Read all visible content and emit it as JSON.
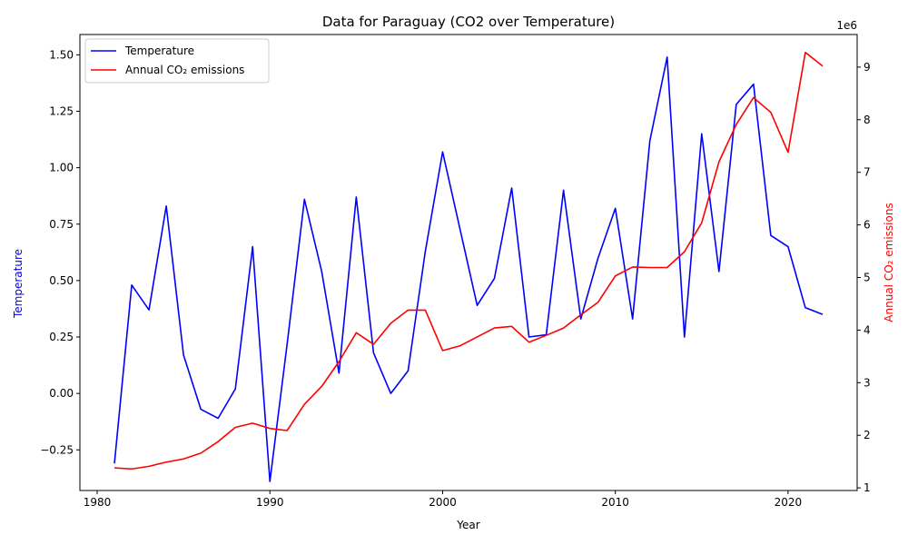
{
  "chart_data": {
    "type": "line",
    "title": "Data for Paraguay (CO2 over Temperature)",
    "xlabel": "Year",
    "ylabel_left": "Temperature",
    "ylabel_right": "Annual CO₂ emissions",
    "right_offset_label": "1e6",
    "xlim": [
      1979,
      2024
    ],
    "ylim_left": [
      -0.43,
      1.59
    ],
    "ylim_right": [
      0.95,
      9.62
    ],
    "x_ticks": [
      1980,
      1990,
      2000,
      2010,
      2020
    ],
    "y_left_ticks": [
      "-0.25",
      "0.00",
      "0.25",
      "0.50",
      "0.75",
      "1.00",
      "1.25",
      "1.50"
    ],
    "y_right_ticks": [
      "1",
      "2",
      "3",
      "4",
      "5",
      "6",
      "7",
      "8",
      "9"
    ],
    "legend_position": "top-left",
    "grid": false,
    "x": [
      1981,
      1982,
      1983,
      1984,
      1985,
      1986,
      1987,
      1988,
      1989,
      1990,
      1991,
      1992,
      1993,
      1994,
      1995,
      1996,
      1997,
      1998,
      1999,
      2000,
      2001,
      2002,
      2003,
      2004,
      2005,
      2006,
      2007,
      2008,
      2009,
      2010,
      2011,
      2012,
      2013,
      2014,
      2015,
      2016,
      2017,
      2018,
      2019,
      2020,
      2021,
      2022
    ],
    "series": [
      {
        "name": "Temperature",
        "axis": "left",
        "color": "#0000ff",
        "values": [
          -0.31,
          0.48,
          0.37,
          0.83,
          0.17,
          -0.07,
          -0.11,
          0.02,
          0.65,
          -0.39,
          0.22,
          0.86,
          0.54,
          0.09,
          0.87,
          0.18,
          0.0,
          0.1,
          0.63,
          1.07,
          0.73,
          0.39,
          0.51,
          0.91,
          0.25,
          0.26,
          0.9,
          0.33,
          0.6,
          0.82,
          0.33,
          1.12,
          1.49,
          0.25,
          1.15,
          0.54,
          1.28,
          1.37,
          0.7,
          0.65,
          0.38,
          0.35
        ]
      },
      {
        "name": "Annual CO₂ emissions",
        "axis": "right",
        "color": "#ff0000",
        "values": [
          1.38,
          1.36,
          1.41,
          1.49,
          1.55,
          1.66,
          1.88,
          2.15,
          2.23,
          2.13,
          2.09,
          2.59,
          2.93,
          3.4,
          3.95,
          3.73,
          4.13,
          4.38,
          4.38,
          3.61,
          3.7,
          3.87,
          4.04,
          4.07,
          3.77,
          3.9,
          4.04,
          4.29,
          4.53,
          5.03,
          5.2,
          5.19,
          5.19,
          5.49,
          6.04,
          7.2,
          7.91,
          8.42,
          8.14,
          7.38,
          9.28,
          9.02
        ]
      }
    ]
  }
}
